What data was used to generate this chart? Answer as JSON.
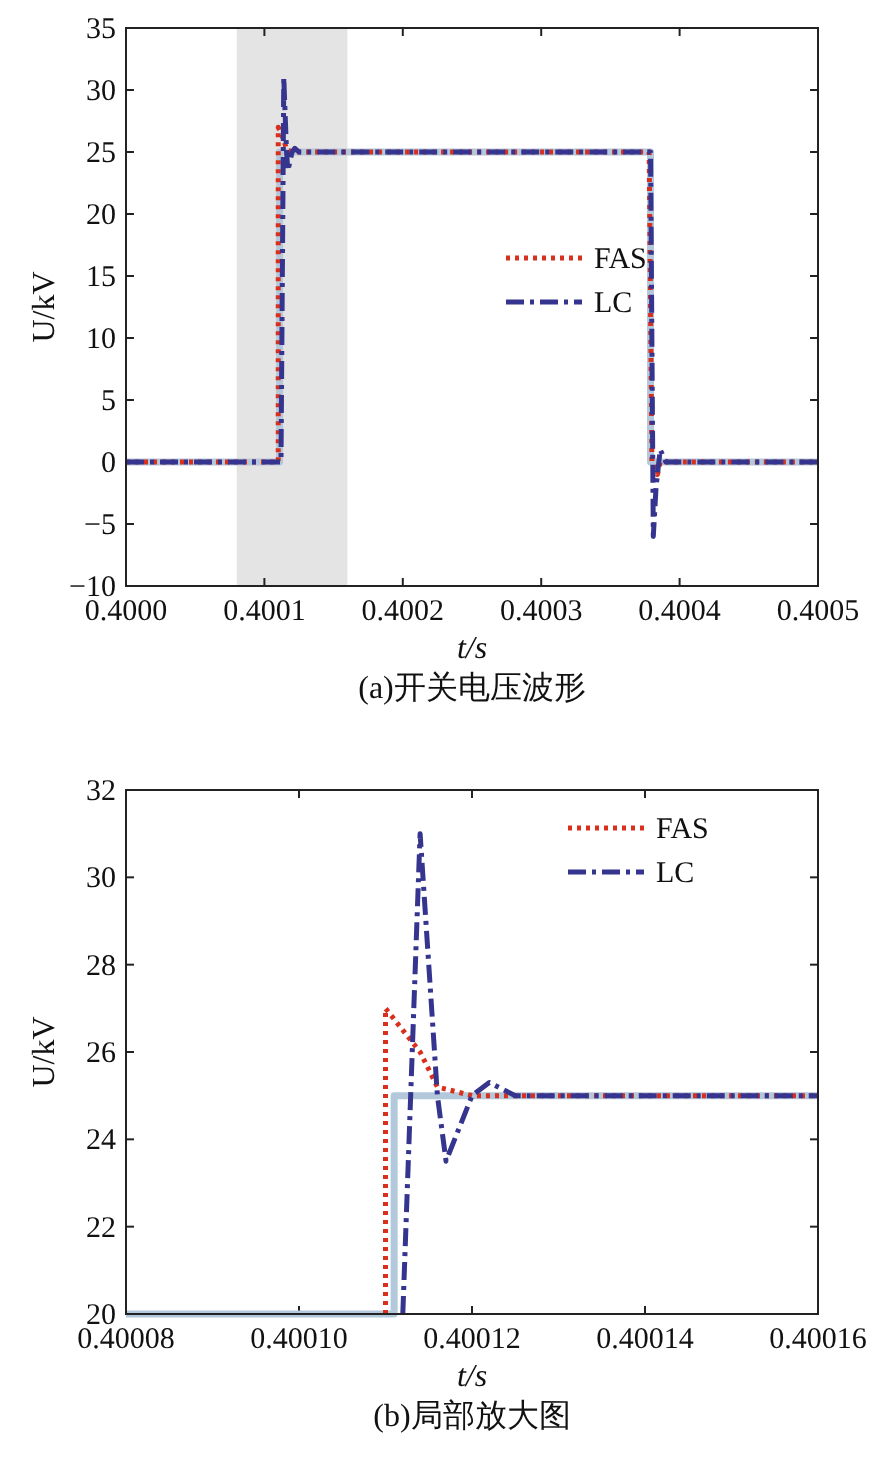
{
  "chart_data": [
    {
      "type": "line",
      "title": "(a)开关电压波形",
      "xlabel": "t/s",
      "ylabel": "U/kV",
      "xlim": [
        0.4,
        0.4005
      ],
      "ylim": [
        -10,
        35
      ],
      "xticks": [
        {
          "value": 0.4,
          "label": "0.4000"
        },
        {
          "value": 0.4001,
          "label": "0.4001"
        },
        {
          "value": 0.4002,
          "label": "0.4002"
        },
        {
          "value": 0.4003,
          "label": "0.4003"
        },
        {
          "value": 0.4004,
          "label": "0.4004"
        },
        {
          "value": 0.4005,
          "label": "0.4005"
        }
      ],
      "yticks": [
        {
          "value": -10,
          "label": "−10"
        },
        {
          "value": -5,
          "label": "−5"
        },
        0,
        5,
        10,
        15,
        20,
        25,
        30,
        35
      ],
      "bands": [
        {
          "axis": "x",
          "from": 0.40008,
          "to": 0.40016,
          "color": "#e4e4e4"
        }
      ],
      "legend": "right",
      "grid": false,
      "series": [
        {
          "color": "#b4c8dc",
          "line_style": "solid",
          "x": [
            0.4,
            0.400111,
            0.400111,
            0.400379,
            0.400379,
            0.4005
          ],
          "values": [
            0,
            0,
            25,
            25,
            0,
            0
          ]
        },
        {
          "name": "FAS",
          "color": "#d8301c",
          "line_style": "dotted",
          "x": [
            0.4,
            0.40011,
            0.40011,
            0.400114,
            0.400116,
            0.40012,
            0.400378,
            0.40038,
            0.400384,
            0.400386,
            0.4005
          ],
          "values": [
            0,
            0,
            27,
            26,
            25.2,
            25,
            25,
            0,
            -1,
            0,
            0
          ]
        },
        {
          "name": "LC",
          "color": "#35358f",
          "line_style": "dashed",
          "x": [
            0.4,
            0.400112,
            0.400114,
            0.400116,
            0.400117,
            0.40012,
            0.400122,
            0.400125,
            0.400379,
            0.400381,
            0.400383,
            0.400386,
            0.40039,
            0.4005
          ],
          "values": [
            0,
            0,
            31,
            25,
            23.5,
            25,
            25.3,
            25,
            25,
            -6,
            -2,
            1,
            0,
            0
          ]
        }
      ]
    },
    {
      "type": "line",
      "title": "(b)局部放大图",
      "xlabel": "t/s",
      "ylabel": "U/kV",
      "xlim": [
        0.40008,
        0.40016
      ],
      "ylim": [
        20,
        32
      ],
      "xticks": [
        {
          "value": 0.40008,
          "label": "0.40008"
        },
        {
          "value": 0.4001,
          "label": "0.40010"
        },
        {
          "value": 0.40012,
          "label": "0.40012"
        },
        {
          "value": 0.40014,
          "label": "0.40014"
        },
        {
          "value": 0.40016,
          "label": "0.40016"
        }
      ],
      "yticks": [
        20,
        22,
        24,
        26,
        28,
        30,
        32
      ],
      "legend": "top right",
      "grid": false,
      "series": [
        {
          "color": "#b4c8dc",
          "line_style": "solid",
          "x": [
            0.40008,
            0.400111,
            0.400111,
            0.40016
          ],
          "values": [
            20,
            20,
            25,
            25
          ]
        },
        {
          "name": "FAS",
          "color": "#d8301c",
          "line_style": "dotted",
          "x": [
            0.40011,
            0.40011,
            0.400114,
            0.400116,
            0.40012,
            0.40016
          ],
          "values": [
            20,
            27,
            26,
            25.2,
            25,
            25
          ]
        },
        {
          "name": "LC",
          "color": "#35358f",
          "line_style": "dashed",
          "x": [
            0.400112,
            0.400114,
            0.400116,
            0.400117,
            0.40012,
            0.400122,
            0.400125,
            0.40016
          ],
          "values": [
            20,
            31,
            25,
            23.5,
            25,
            25.3,
            25,
            25
          ]
        }
      ]
    }
  ]
}
